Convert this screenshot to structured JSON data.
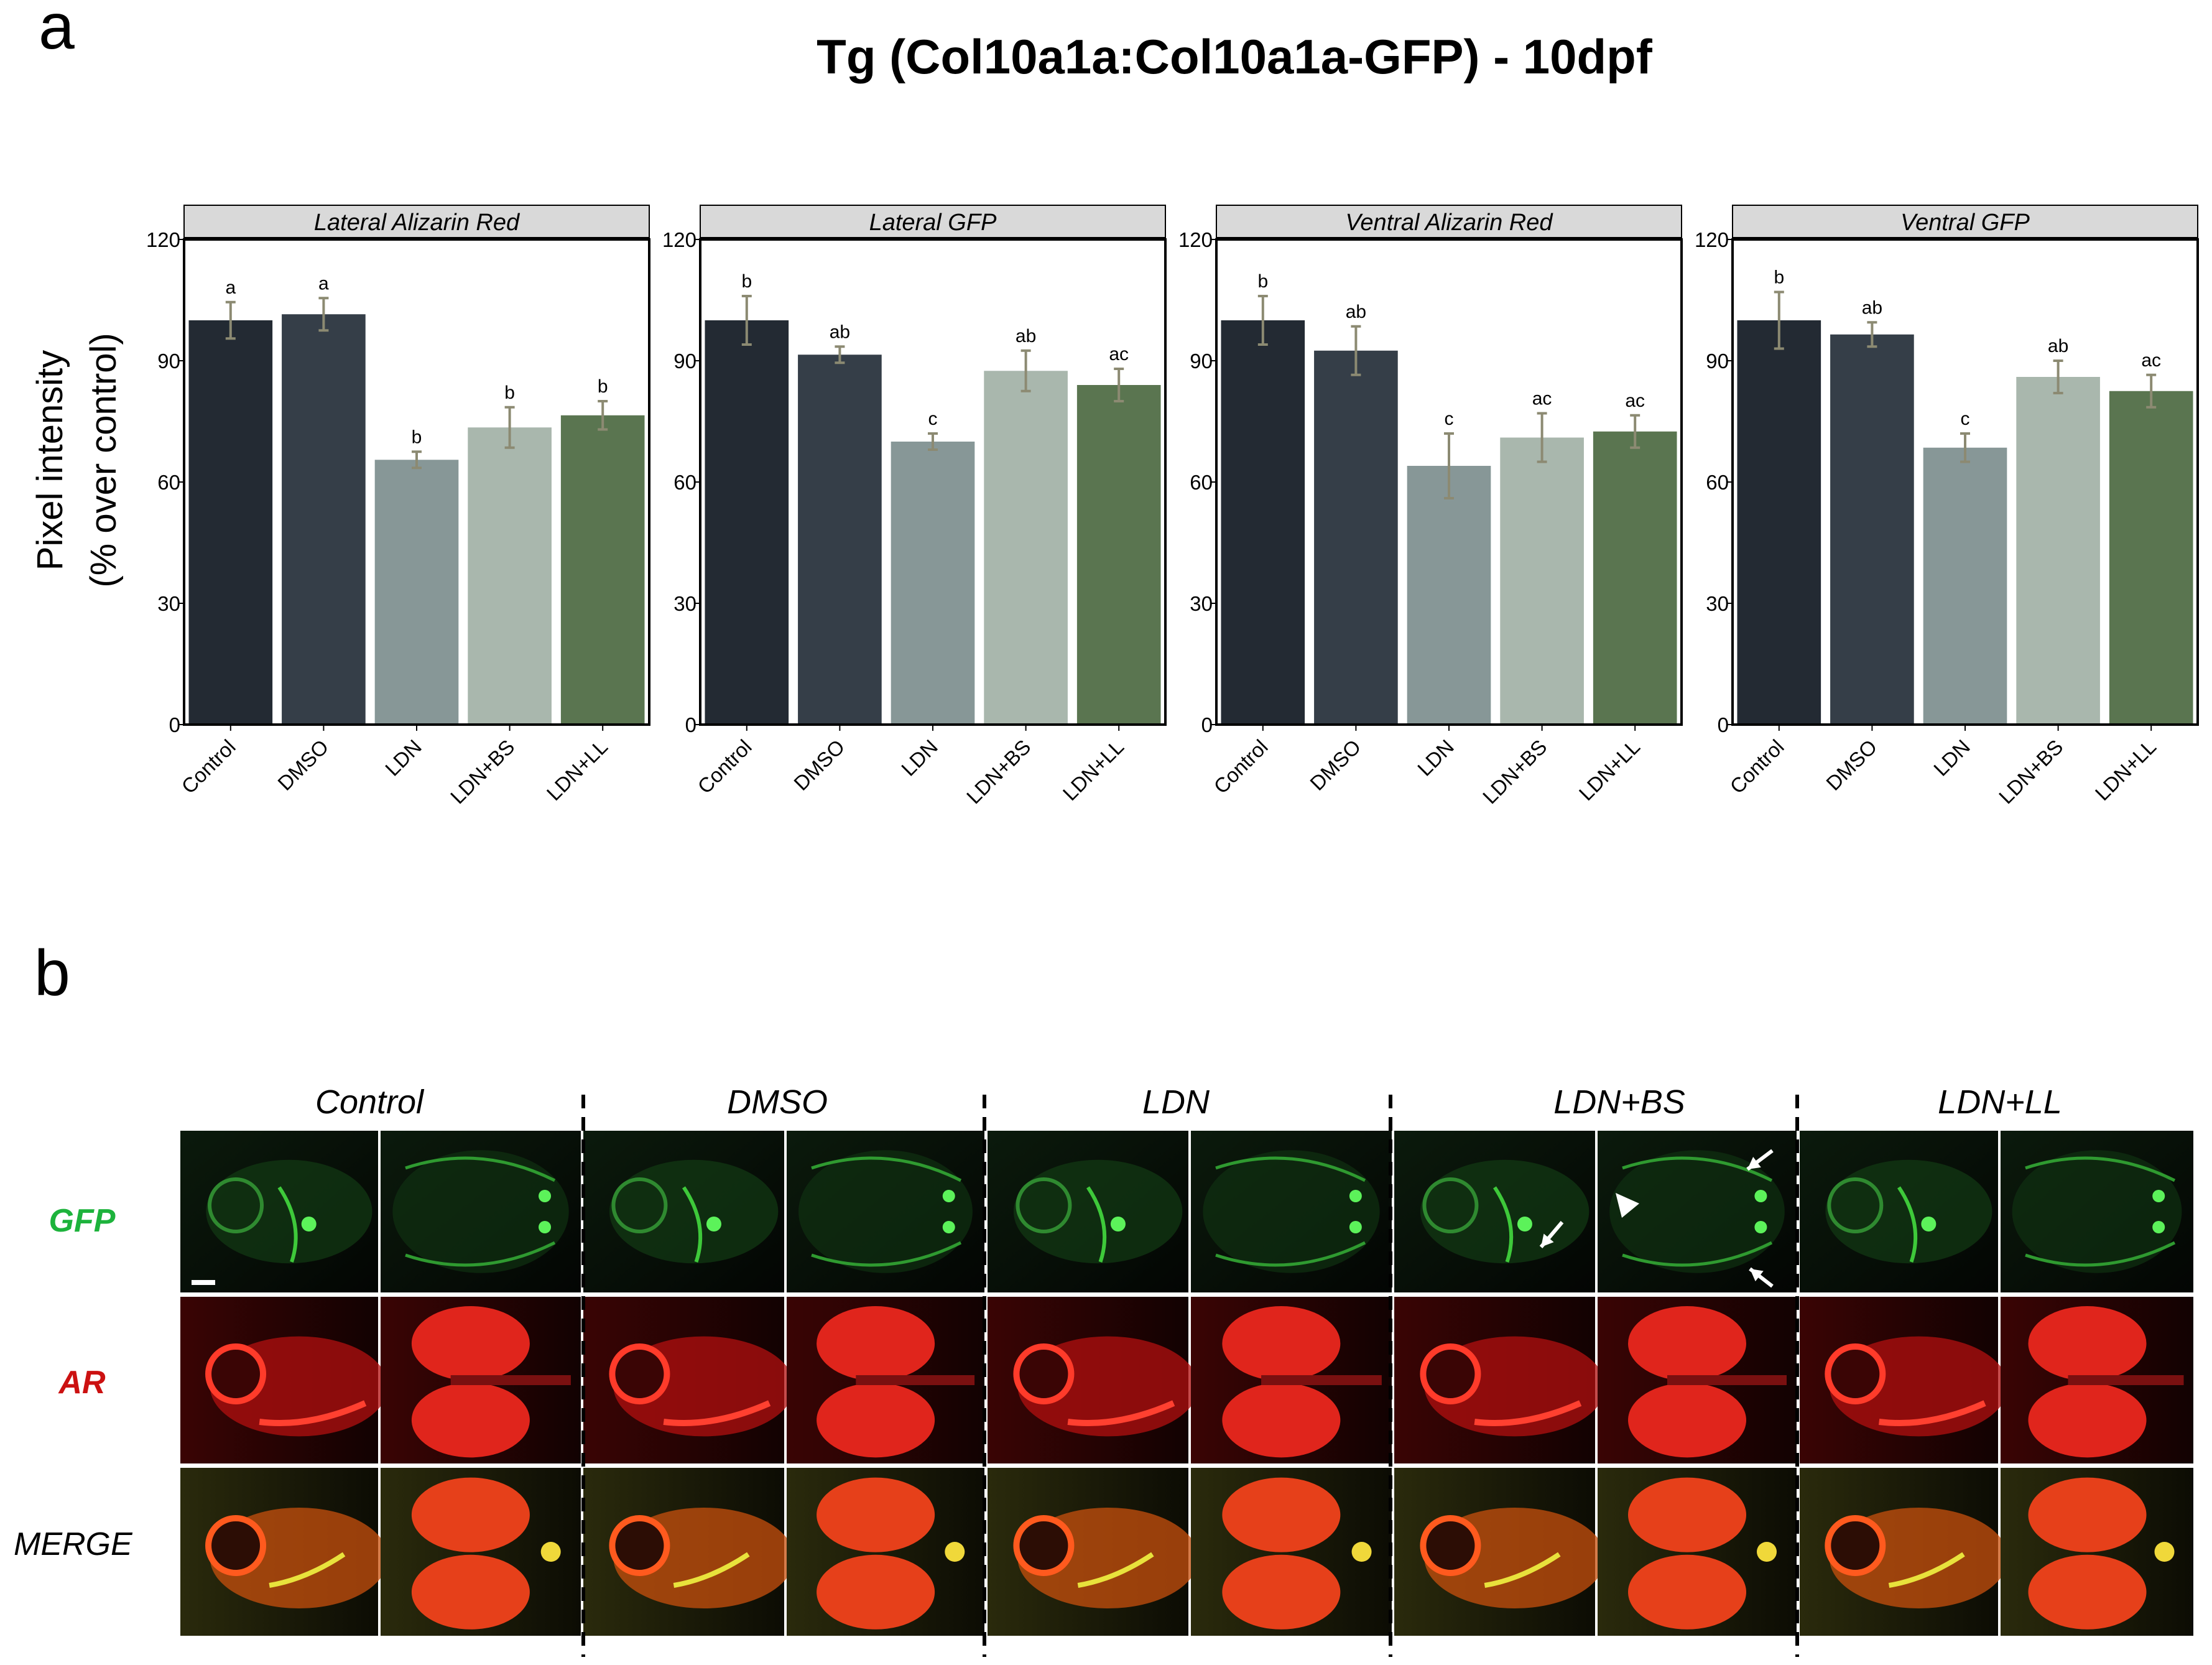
{
  "panel_a": {
    "letter": "a",
    "title": "Tg (Col10a1a:Col10a1a-GFP) - 10dpf"
  },
  "panel_b": {
    "letter": "b",
    "columns": [
      "Control",
      "DMSO",
      "LDN",
      "LDN+BS",
      "LDN+LL"
    ],
    "rows": [
      {
        "label": "GFP",
        "color": "#1db33c"
      },
      {
        "label": "AR",
        "color": "#cc1111"
      },
      {
        "label": "MERGE",
        "color": "#000000"
      }
    ],
    "images": [
      [
        {
          "view": "lateral",
          "fluor": "green",
          "desc": "Control GFP lateral"
        },
        {
          "view": "ventral",
          "fluor": "green",
          "desc": "Control GFP ventral"
        },
        {
          "view": "lateral",
          "fluor": "green",
          "desc": "DMSO GFP lateral"
        },
        {
          "view": "ventral",
          "fluor": "green",
          "desc": "DMSO GFP ventral"
        },
        {
          "view": "lateral",
          "fluor": "green",
          "desc": "LDN GFP lateral"
        },
        {
          "view": "ventral",
          "fluor": "green",
          "desc": "LDN GFP ventral"
        },
        {
          "view": "lateral",
          "fluor": "green",
          "desc": "LDN+BS GFP lateral"
        },
        {
          "view": "ventral",
          "fluor": "green",
          "desc": "LDN+BS GFP ventral"
        },
        {
          "view": "lateral",
          "fluor": "green",
          "desc": "LDN+LL GFP lateral"
        },
        {
          "view": "ventral",
          "fluor": "green",
          "desc": "LDN+LL GFP ventral"
        }
      ],
      [
        {
          "view": "lateral",
          "fluor": "red",
          "desc": "Control AR lateral"
        },
        {
          "view": "ventral",
          "fluor": "red",
          "desc": "Control AR ventral"
        },
        {
          "view": "lateral",
          "fluor": "red",
          "desc": "DMSO AR lateral"
        },
        {
          "view": "ventral",
          "fluor": "red",
          "desc": "DMSO AR ventral"
        },
        {
          "view": "lateral",
          "fluor": "red",
          "desc": "LDN AR lateral"
        },
        {
          "view": "ventral",
          "fluor": "red",
          "desc": "LDN AR ventral"
        },
        {
          "view": "lateral",
          "fluor": "red",
          "desc": "LDN+BS AR lateral"
        },
        {
          "view": "ventral",
          "fluor": "red",
          "desc": "LDN+BS AR ventral"
        },
        {
          "view": "lateral",
          "fluor": "red",
          "desc": "LDN+LL AR lateral"
        },
        {
          "view": "ventral",
          "fluor": "red",
          "desc": "LDN+LL AR ventral"
        }
      ],
      [
        {
          "view": "lateral",
          "fluor": "merge",
          "desc": "Control merge lateral"
        },
        {
          "view": "ventral",
          "fluor": "merge",
          "desc": "Control merge ventral"
        },
        {
          "view": "lateral",
          "fluor": "merge",
          "desc": "DMSO merge lateral"
        },
        {
          "view": "ventral",
          "fluor": "merge",
          "desc": "DMSO merge ventral"
        },
        {
          "view": "lateral",
          "fluor": "merge",
          "desc": "LDN merge lateral"
        },
        {
          "view": "ventral",
          "fluor": "merge",
          "desc": "LDN merge ventral"
        },
        {
          "view": "lateral",
          "fluor": "merge",
          "desc": "LDN+BS merge lateral"
        },
        {
          "view": "ventral",
          "fluor": "merge",
          "desc": "LDN+BS merge ventral"
        },
        {
          "view": "lateral",
          "fluor": "merge",
          "desc": "LDN+LL merge lateral"
        },
        {
          "view": "ventral",
          "fluor": "merge",
          "desc": "LDN+LL merge ventral"
        }
      ]
    ]
  },
  "chart_data": {
    "type": "bar",
    "ylabel_line1": "Pixel intensity",
    "ylabel_line2": "(% over control)",
    "ylim": [
      0,
      120
    ],
    "yticks": [
      0,
      30,
      60,
      90,
      120
    ],
    "categories": [
      "Control",
      "DMSO",
      "LDN",
      "LDN+BS",
      "LDN+LL"
    ],
    "bar_colors": [
      "#232a33",
      "#353e48",
      "#879797",
      "#a9b7ad",
      "#5a7550"
    ],
    "error_color": "#8c8a72",
    "facets": [
      {
        "title": "Lateral Alizarin Red",
        "values": [
          100,
          101.5,
          65.5,
          73.5,
          76.5
        ],
        "errors": [
          4.5,
          4,
          2,
          5,
          3.5
        ],
        "letters": [
          "a",
          "a",
          "b",
          "b",
          "b"
        ]
      },
      {
        "title": "Lateral GFP",
        "values": [
          100,
          91.5,
          70,
          87.5,
          84
        ],
        "errors": [
          6,
          2,
          2,
          5,
          4
        ],
        "letters": [
          "b",
          "ab",
          "c",
          "ab",
          "ac"
        ]
      },
      {
        "title": "Ventral Alizarin Red",
        "values": [
          100,
          92.5,
          64,
          71,
          72.5
        ],
        "errors": [
          6,
          6,
          8,
          6,
          4
        ],
        "letters": [
          "b",
          "ab",
          "c",
          "ac",
          "ac"
        ]
      },
      {
        "title": "Ventral GFP",
        "values": [
          100,
          96.5,
          68.5,
          86,
          82.5
        ],
        "errors": [
          7,
          3,
          3.5,
          4,
          4
        ],
        "letters": [
          "b",
          "ab",
          "c",
          "ab",
          "ac"
        ]
      }
    ]
  }
}
